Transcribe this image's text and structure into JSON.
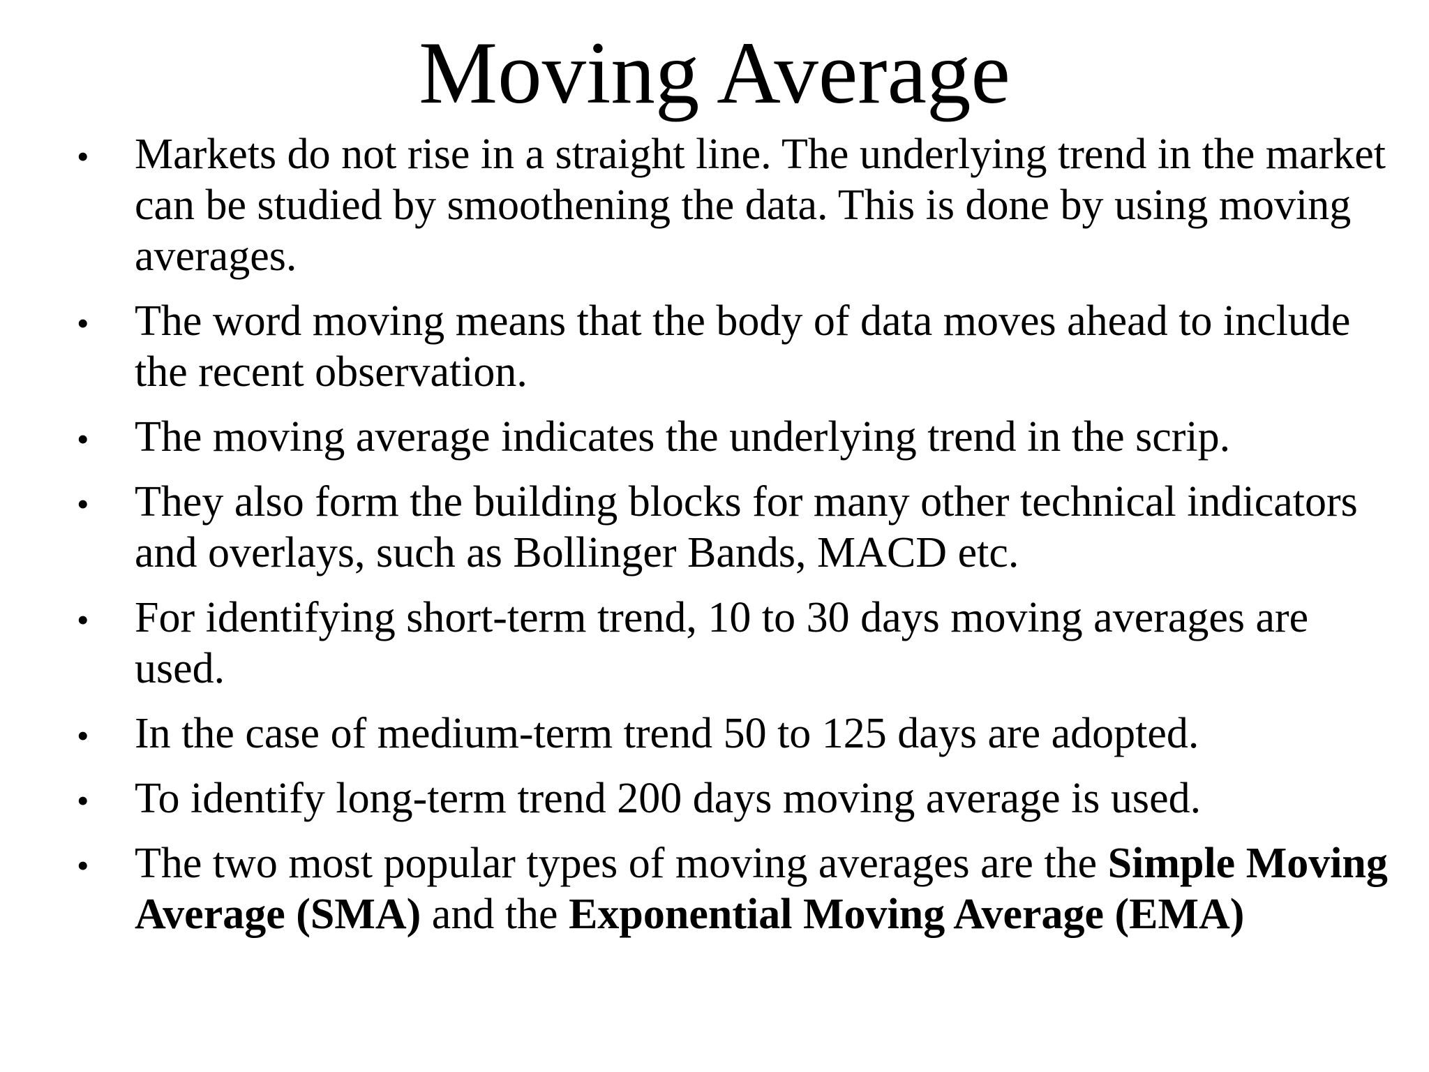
{
  "slide": {
    "title": "Moving Average",
    "bullet_glyph": "•",
    "colors": {
      "background": "#ffffff",
      "text": "#000000"
    },
    "bullets": [
      {
        "segments": [
          {
            "text": "Markets do not rise in a straight line. The underlying trend in the market can be studied by smoothening the data. This is done by using moving averages.",
            "bold": false
          }
        ]
      },
      {
        "segments": [
          {
            "text": "The word moving means that the body of data moves ahead to include the recent observation.",
            "bold": false
          }
        ]
      },
      {
        "segments": [
          {
            "text": "The moving average indicates the underlying trend in the scrip.",
            "bold": false
          }
        ]
      },
      {
        "segments": [
          {
            "text": "They also form the building blocks for many other technical indicators and overlays, such as Bollinger Bands, MACD etc.",
            "bold": false
          }
        ]
      },
      {
        "segments": [
          {
            "text": "For identifying short-term trend, 10 to 30 days moving averages are used.",
            "bold": false
          }
        ]
      },
      {
        "segments": [
          {
            "text": "In the case of medium-term trend 50 to 125 days are adopted.",
            "bold": false
          }
        ]
      },
      {
        "segments": [
          {
            "text": "To identify long-term trend 200 days moving average is used.",
            "bold": false
          }
        ]
      },
      {
        "segments": [
          {
            "text": "The two most popular types of moving averages are the ",
            "bold": false
          },
          {
            "text": "Simple Moving Average (SMA)",
            "bold": true
          },
          {
            "text": " and the ",
            "bold": false
          },
          {
            "text": "Exponential Moving Average (EMA)",
            "bold": true
          }
        ]
      }
    ]
  }
}
